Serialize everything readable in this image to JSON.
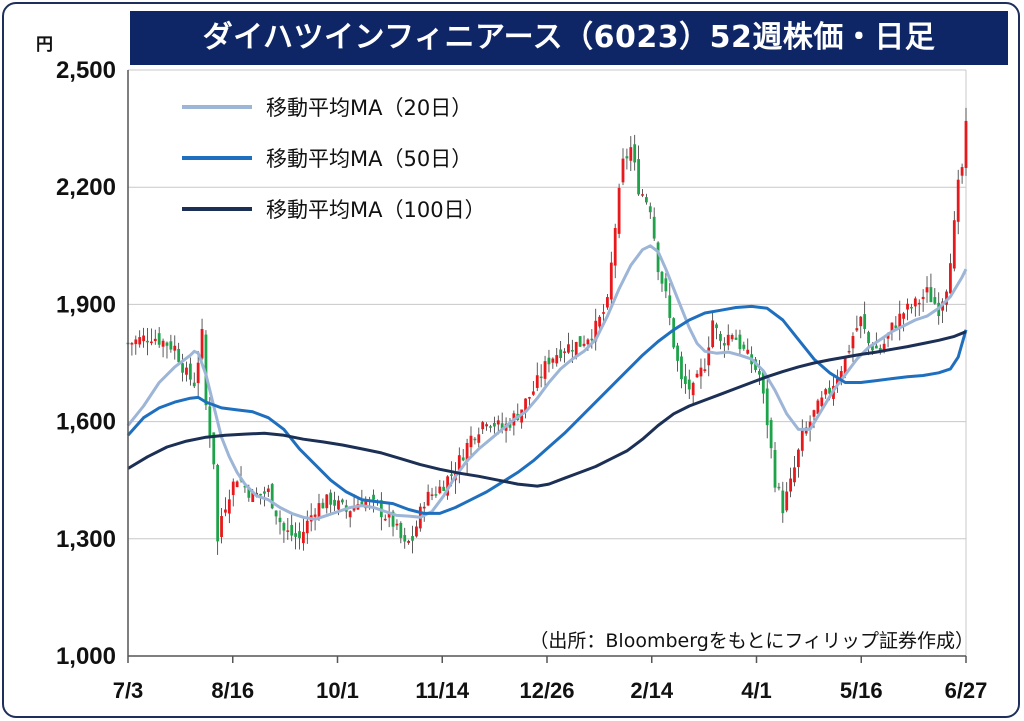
{
  "chart_data": {
    "type": "candlestick",
    "title": "ダイハツインフィニアース（6023）52週株価・日足",
    "unit": "円",
    "ylim": [
      1000,
      2500
    ],
    "y_ticks": [
      "1,000",
      "1,300",
      "1,600",
      "1,900",
      "2,200",
      "2,500"
    ],
    "y_tick_values": [
      1000,
      1300,
      1600,
      1900,
      2200,
      2500
    ],
    "x_ticks": [
      "7/3",
      "8/16",
      "10/1",
      "11/14",
      "12/26",
      "2/14",
      "4/1",
      "5/16",
      "6/27"
    ],
    "grid": true,
    "legend_position": "top-left",
    "up_color": "#e8191c",
    "down_color": "#1fa34a",
    "series": [
      {
        "name": "移動平均MA（20日）",
        "color": "#9db5d6",
        "values": [
          [
            0,
            1590
          ],
          [
            4,
            1640
          ],
          [
            8,
            1700
          ],
          [
            12,
            1740
          ],
          [
            16,
            1770
          ],
          [
            17,
            1780
          ],
          [
            18,
            1775
          ],
          [
            20,
            1720
          ],
          [
            22,
            1640
          ],
          [
            24,
            1560
          ],
          [
            26,
            1510
          ],
          [
            28,
            1470
          ],
          [
            30,
            1440
          ],
          [
            33,
            1410
          ],
          [
            36,
            1400
          ],
          [
            39,
            1380
          ],
          [
            42,
            1365
          ],
          [
            45,
            1355
          ],
          [
            48,
            1350
          ],
          [
            51,
            1360
          ],
          [
            54,
            1370
          ],
          [
            57,
            1380
          ],
          [
            60,
            1385
          ],
          [
            63,
            1380
          ],
          [
            66,
            1370
          ],
          [
            69,
            1360
          ],
          [
            72,
            1358
          ],
          [
            75,
            1355
          ],
          [
            78,
            1370
          ],
          [
            81,
            1410
          ],
          [
            84,
            1460
          ],
          [
            87,
            1500
          ],
          [
            90,
            1530
          ],
          [
            93,
            1555
          ],
          [
            96,
            1580
          ],
          [
            99,
            1605
          ],
          [
            102,
            1625
          ],
          [
            105,
            1660
          ],
          [
            108,
            1700
          ],
          [
            111,
            1735
          ],
          [
            114,
            1760
          ],
          [
            117,
            1780
          ],
          [
            120,
            1810
          ],
          [
            123,
            1870
          ],
          [
            126,
            1940
          ],
          [
            129,
            2000
          ],
          [
            132,
            2040
          ],
          [
            134,
            2050
          ],
          [
            136,
            2035
          ],
          [
            138,
            1990
          ],
          [
            140,
            1940
          ],
          [
            142,
            1890
          ],
          [
            144,
            1840
          ],
          [
            146,
            1800
          ],
          [
            148,
            1780
          ],
          [
            151,
            1775
          ],
          [
            154,
            1778
          ],
          [
            157,
            1770
          ],
          [
            160,
            1760
          ],
          [
            163,
            1730
          ],
          [
            166,
            1680
          ],
          [
            169,
            1620
          ],
          [
            172,
            1580
          ],
          [
            175,
            1580
          ],
          [
            178,
            1630
          ],
          [
            181,
            1680
          ],
          [
            184,
            1720
          ],
          [
            187,
            1760
          ],
          [
            190,
            1790
          ],
          [
            193,
            1810
          ],
          [
            196,
            1830
          ],
          [
            199,
            1845
          ],
          [
            202,
            1860
          ],
          [
            205,
            1870
          ],
          [
            208,
            1890
          ],
          [
            211,
            1920
          ],
          [
            214,
            1970
          ],
          [
            215,
            1990
          ]
        ]
      },
      {
        "name": "移動平均MA（50日）",
        "color": "#1f6fbf",
        "values": [
          [
            0,
            1565
          ],
          [
            4,
            1610
          ],
          [
            8,
            1635
          ],
          [
            12,
            1650
          ],
          [
            16,
            1660
          ],
          [
            18,
            1662
          ],
          [
            20,
            1650
          ],
          [
            24,
            1635
          ],
          [
            28,
            1630
          ],
          [
            32,
            1625
          ],
          [
            36,
            1610
          ],
          [
            40,
            1580
          ],
          [
            44,
            1530
          ],
          [
            48,
            1490
          ],
          [
            52,
            1450
          ],
          [
            56,
            1420
          ],
          [
            60,
            1400
          ],
          [
            64,
            1395
          ],
          [
            68,
            1390
          ],
          [
            72,
            1375
          ],
          [
            76,
            1365
          ],
          [
            80,
            1365
          ],
          [
            84,
            1380
          ],
          [
            88,
            1400
          ],
          [
            92,
            1420
          ],
          [
            96,
            1445
          ],
          [
            100,
            1470
          ],
          [
            104,
            1500
          ],
          [
            108,
            1535
          ],
          [
            112,
            1570
          ],
          [
            116,
            1610
          ],
          [
            120,
            1650
          ],
          [
            124,
            1690
          ],
          [
            128,
            1730
          ],
          [
            132,
            1770
          ],
          [
            136,
            1805
          ],
          [
            140,
            1835
          ],
          [
            144,
            1860
          ],
          [
            148,
            1878
          ],
          [
            152,
            1885
          ],
          [
            156,
            1892
          ],
          [
            160,
            1895
          ],
          [
            164,
            1890
          ],
          [
            168,
            1860
          ],
          [
            172,
            1810
          ],
          [
            176,
            1760
          ],
          [
            180,
            1725
          ],
          [
            184,
            1700
          ],
          [
            188,
            1700
          ],
          [
            192,
            1705
          ],
          [
            196,
            1710
          ],
          [
            200,
            1715
          ],
          [
            204,
            1718
          ],
          [
            208,
            1725
          ],
          [
            211,
            1735
          ],
          [
            213,
            1765
          ],
          [
            215,
            1835
          ]
        ]
      },
      {
        "name": "移動平均MA（100日）",
        "color": "#1c2f55",
        "values": [
          [
            0,
            1480
          ],
          [
            5,
            1510
          ],
          [
            10,
            1535
          ],
          [
            15,
            1550
          ],
          [
            20,
            1560
          ],
          [
            25,
            1565
          ],
          [
            30,
            1568
          ],
          [
            35,
            1570
          ],
          [
            40,
            1565
          ],
          [
            45,
            1555
          ],
          [
            50,
            1548
          ],
          [
            55,
            1540
          ],
          [
            60,
            1530
          ],
          [
            65,
            1520
          ],
          [
            70,
            1505
          ],
          [
            75,
            1490
          ],
          [
            80,
            1478
          ],
          [
            85,
            1468
          ],
          [
            90,
            1460
          ],
          [
            95,
            1450
          ],
          [
            100,
            1440
          ],
          [
            105,
            1435
          ],
          [
            108,
            1440
          ],
          [
            112,
            1455
          ],
          [
            116,
            1470
          ],
          [
            120,
            1485
          ],
          [
            124,
            1505
          ],
          [
            128,
            1525
          ],
          [
            132,
            1555
          ],
          [
            136,
            1590
          ],
          [
            140,
            1620
          ],
          [
            144,
            1640
          ],
          [
            148,
            1655
          ],
          [
            152,
            1670
          ],
          [
            156,
            1685
          ],
          [
            160,
            1700
          ],
          [
            164,
            1715
          ],
          [
            168,
            1728
          ],
          [
            172,
            1740
          ],
          [
            176,
            1750
          ],
          [
            180,
            1758
          ],
          [
            184,
            1765
          ],
          [
            188,
            1772
          ],
          [
            192,
            1778
          ],
          [
            196,
            1785
          ],
          [
            200,
            1792
          ],
          [
            204,
            1800
          ],
          [
            208,
            1808
          ],
          [
            212,
            1818
          ],
          [
            215,
            1830
          ]
        ]
      }
    ]
  },
  "source_note": "（出所：Bloombergをもとにフィリップ証券作成）"
}
